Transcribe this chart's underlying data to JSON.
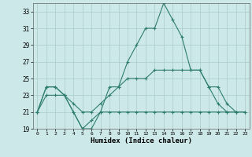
{
  "xlabel": "Humidex (Indice chaleur)",
  "x": [
    0,
    1,
    2,
    3,
    4,
    5,
    6,
    7,
    8,
    9,
    10,
    11,
    12,
    13,
    14,
    15,
    16,
    17,
    18,
    19,
    20,
    21,
    22,
    23
  ],
  "line1": [
    21,
    24,
    24,
    23,
    21,
    19,
    19,
    21,
    24,
    24,
    27,
    29,
    31,
    31,
    34,
    32,
    30,
    26,
    26,
    24,
    22,
    21,
    21,
    null
  ],
  "line2": [
    21,
    24,
    24,
    23,
    22,
    21,
    21,
    22,
    23,
    24,
    25,
    25,
    25,
    26,
    26,
    26,
    26,
    26,
    26,
    24,
    24,
    22,
    21,
    21
  ],
  "line3": [
    21,
    23,
    23,
    23,
    21,
    19,
    20,
    21,
    21,
    21,
    21,
    21,
    21,
    21,
    21,
    21,
    21,
    21,
    21,
    21,
    21,
    21,
    21,
    21
  ],
  "color": "#2e7d6e",
  "bg_color": "#cce8e8",
  "grid_color": "#aacccc",
  "ylim": [
    19,
    34
  ],
  "xlim": [
    -0.5,
    23.5
  ],
  "yticks": [
    19,
    21,
    23,
    25,
    27,
    29,
    31,
    33
  ],
  "xticks": [
    0,
    1,
    2,
    3,
    4,
    5,
    6,
    7,
    8,
    9,
    10,
    11,
    12,
    13,
    14,
    15,
    16,
    17,
    18,
    19,
    20,
    21,
    22,
    23
  ]
}
